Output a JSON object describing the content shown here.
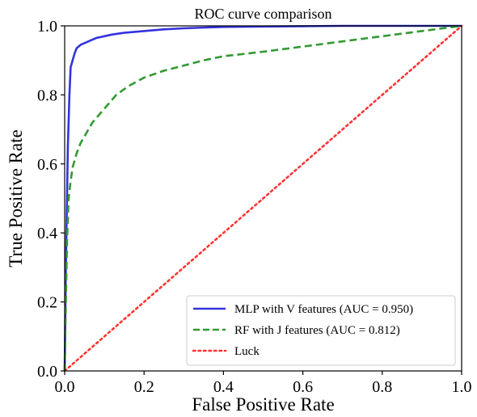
{
  "chart_data": {
    "type": "line",
    "title": "ROC curve comparison",
    "xlabel": "False Positive Rate",
    "ylabel": "True Positive Rate",
    "xlim": [
      0.0,
      1.0
    ],
    "ylim": [
      0.0,
      1.0
    ],
    "xticks": [
      "0.0",
      "0.2",
      "0.4",
      "0.6",
      "0.8",
      "1.0"
    ],
    "yticks": [
      "0.0",
      "0.2",
      "0.4",
      "0.6",
      "0.8",
      "1.0"
    ],
    "grid": false,
    "legend_position": "lower-right",
    "series": [
      {
        "name": "MLP with V features (AUC = 0.950)",
        "color": "#3333dd",
        "style": "solid",
        "x": [
          0.0,
          0.003,
          0.008,
          0.012,
          0.015,
          0.02,
          0.025,
          0.03,
          0.04,
          0.05,
          0.06,
          0.07,
          0.08,
          0.1,
          0.12,
          0.15,
          0.2,
          0.25,
          0.3,
          0.35,
          0.4,
          0.5,
          0.6,
          0.7,
          0.8,
          0.9,
          1.0
        ],
        "y": [
          0.0,
          0.3,
          0.65,
          0.8,
          0.88,
          0.9,
          0.92,
          0.935,
          0.945,
          0.95,
          0.955,
          0.96,
          0.965,
          0.97,
          0.975,
          0.98,
          0.985,
          0.99,
          0.993,
          0.995,
          0.997,
          0.998,
          0.999,
          1.0,
          1.0,
          1.0,
          1.0
        ]
      },
      {
        "name": "RF with J features (AUC = 0.812)",
        "color": "#339933",
        "style": "dashed",
        "x": [
          0.0,
          0.003,
          0.006,
          0.01,
          0.015,
          0.02,
          0.03,
          0.04,
          0.05,
          0.07,
          0.1,
          0.13,
          0.16,
          0.2,
          0.25,
          0.3,
          0.35,
          0.4,
          0.5,
          0.6,
          0.7,
          0.8,
          0.9,
          1.0
        ],
        "y": [
          0.0,
          0.2,
          0.38,
          0.5,
          0.55,
          0.59,
          0.63,
          0.66,
          0.68,
          0.72,
          0.76,
          0.8,
          0.825,
          0.85,
          0.87,
          0.885,
          0.9,
          0.912,
          0.925,
          0.94,
          0.955,
          0.97,
          0.985,
          1.0
        ]
      },
      {
        "name": "Luck",
        "color": "#ff3333",
        "style": "dotted",
        "x": [
          0.0,
          1.0
        ],
        "y": [
          0.0,
          1.0
        ]
      }
    ]
  }
}
